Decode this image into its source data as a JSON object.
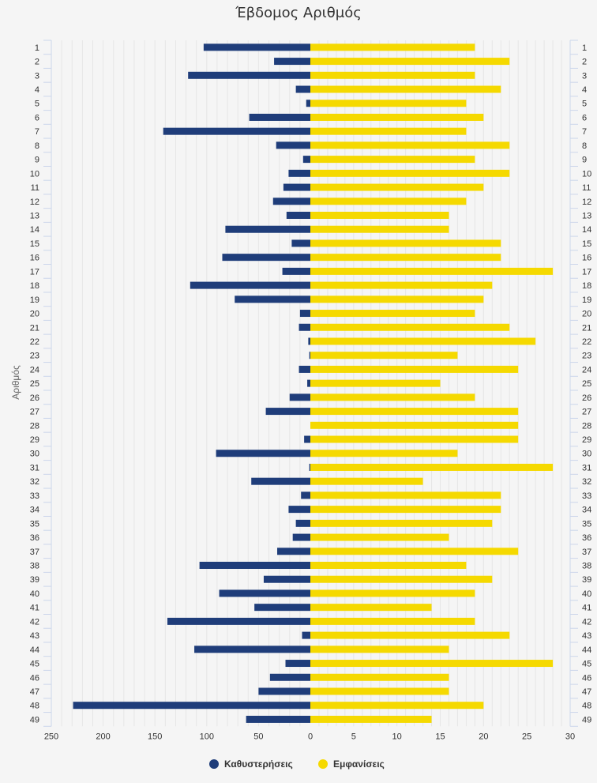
{
  "chart_data": {
    "type": "bar",
    "orientation": "horizontal",
    "title": "Έβδομος Αριθμός",
    "ylabel": "Αριθμός",
    "categories": [
      "1",
      "2",
      "3",
      "4",
      "5",
      "6",
      "7",
      "8",
      "9",
      "10",
      "11",
      "12",
      "13",
      "14",
      "15",
      "16",
      "17",
      "18",
      "19",
      "20",
      "21",
      "22",
      "23",
      "24",
      "25",
      "26",
      "27",
      "28",
      "29",
      "30",
      "31",
      "32",
      "33",
      "34",
      "35",
      "36",
      "37",
      "38",
      "39",
      "40",
      "41",
      "42",
      "43",
      "44",
      "45",
      "46",
      "47",
      "48",
      "49"
    ],
    "left_axis": {
      "xlim": [
        250,
        0
      ],
      "ticks": [
        "250",
        "200",
        "150",
        "100",
        "50",
        "0"
      ]
    },
    "right_axis": {
      "xlim": [
        0,
        30
      ],
      "ticks": [
        "5",
        "10",
        "15",
        "20",
        "25",
        "30"
      ]
    },
    "series": [
      {
        "name": "Καθυστερήσεις",
        "color": "#1f3d7a",
        "side": "left",
        "values": [
          103,
          35,
          118,
          14,
          4,
          59,
          142,
          33,
          7,
          21,
          26,
          36,
          23,
          82,
          18,
          85,
          27,
          116,
          73,
          10,
          11,
          2,
          1,
          11,
          3,
          20,
          43,
          0,
          6,
          91,
          1,
          57,
          9,
          21,
          14,
          17,
          32,
          107,
          45,
          88,
          54,
          138,
          8,
          112,
          24,
          39,
          50,
          229,
          62
        ]
      },
      {
        "name": "Εμφανίσεις",
        "color": "#f5d900",
        "side": "right",
        "values": [
          19,
          23,
          19,
          22,
          18,
          20,
          18,
          23,
          19,
          23,
          20,
          18,
          16,
          16,
          22,
          22,
          28,
          21,
          20,
          19,
          23,
          26,
          17,
          24,
          15,
          19,
          24,
          24,
          24,
          17,
          28,
          13,
          22,
          22,
          21,
          16,
          24,
          18,
          21,
          19,
          14,
          19,
          23,
          16,
          28,
          16,
          16,
          20,
          14
        ]
      }
    ],
    "legend": {
      "position": "bottom-center"
    },
    "grid": true
  }
}
